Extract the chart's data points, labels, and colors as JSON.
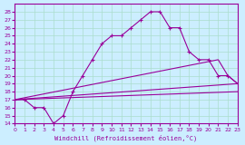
{
  "title": "",
  "xlabel": "Windchill (Refroidissement éolien,°C)",
  "ylabel": "",
  "bg_color": "#cceeff",
  "line_color": "#990099",
  "grid_color": "#aaddcc",
  "ylim": [
    14,
    29
  ],
  "xlim": [
    0,
    23
  ],
  "yticks": [
    14,
    15,
    16,
    17,
    18,
    19,
    20,
    21,
    22,
    23,
    24,
    25,
    26,
    27,
    28
  ],
  "xticks": [
    0,
    1,
    2,
    3,
    4,
    5,
    6,
    7,
    8,
    9,
    10,
    11,
    12,
    13,
    14,
    15,
    16,
    17,
    18,
    19,
    20,
    21,
    22,
    23
  ],
  "series": [
    {
      "x": [
        0,
        1,
        2,
        3,
        4,
        5,
        6,
        7,
        8,
        9,
        10,
        11,
        12,
        13,
        14,
        15,
        16,
        17,
        18,
        19,
        20,
        21,
        22,
        23
      ],
      "y": [
        17,
        17,
        16,
        16,
        14,
        15,
        18,
        20,
        22,
        24,
        25,
        25,
        26,
        27,
        28,
        28,
        26,
        26,
        23,
        22,
        22,
        20,
        20,
        19
      ]
    },
    {
      "x": [
        0,
        21,
        22,
        23
      ],
      "y": [
        17,
        22,
        20,
        19
      ]
    },
    {
      "x": [
        0,
        23
      ],
      "y": [
        17,
        19
      ]
    },
    {
      "x": [
        0,
        23
      ],
      "y": [
        17,
        18
      ]
    }
  ]
}
